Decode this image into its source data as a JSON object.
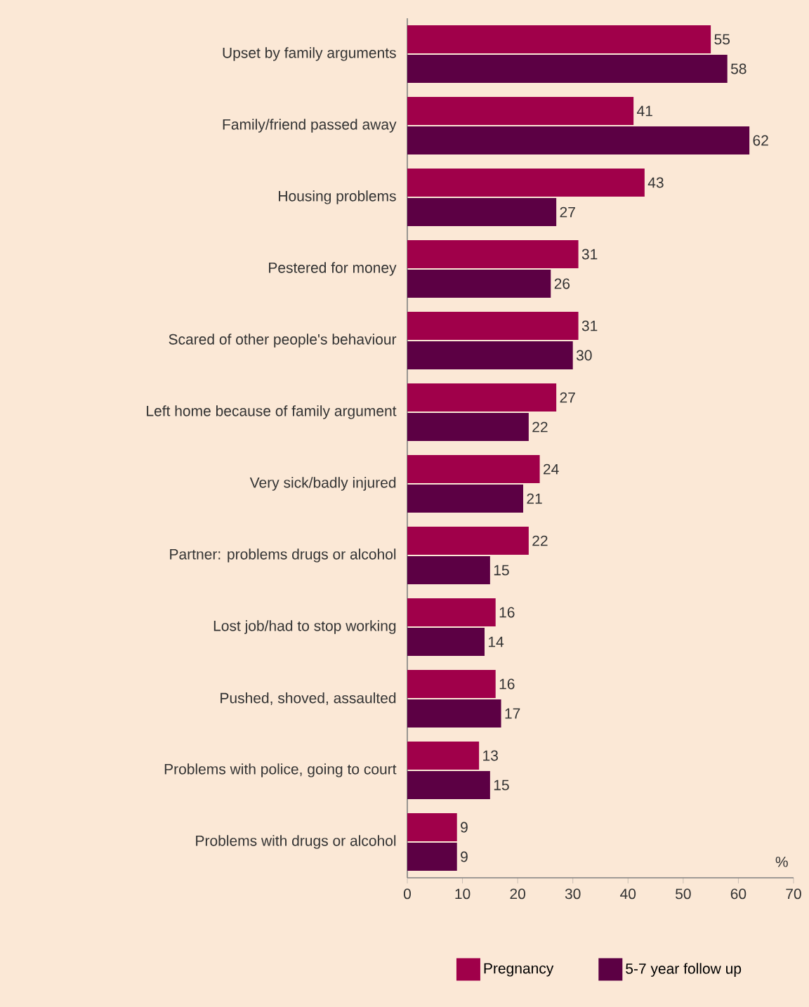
{
  "chart_data": {
    "type": "bar",
    "orientation": "horizontal",
    "xlabel": "%",
    "categories": [
      "Upset by family arguments",
      "Family/friend passed away",
      "Housing problems",
      "Pestered for money",
      "Scared of other people's behaviour",
      "Left home because of family argument",
      "Very sick/badly injured",
      "Partner: problems drugs or alcohol",
      "Lost job/had to stop working",
      "Pushed, shoved, assaulted",
      "Problems with police, going to court",
      "Problems with drugs or alcohol"
    ],
    "series": [
      {
        "name": "Pregnancy",
        "color": "#a0004a",
        "values": [
          55,
          41,
          43,
          31,
          31,
          27,
          24,
          22,
          16,
          16,
          13,
          9
        ]
      },
      {
        "name": "5-7 year follow up",
        "color": "#5c0044",
        "values": [
          58,
          62,
          27,
          26,
          30,
          22,
          21,
          15,
          14,
          17,
          15,
          9
        ]
      }
    ],
    "xlim": [
      0,
      70
    ],
    "xticks": [
      0,
      10,
      20,
      30,
      40,
      50,
      60,
      70
    ],
    "data_labels": true,
    "grid": false,
    "legend": "bottom"
  }
}
